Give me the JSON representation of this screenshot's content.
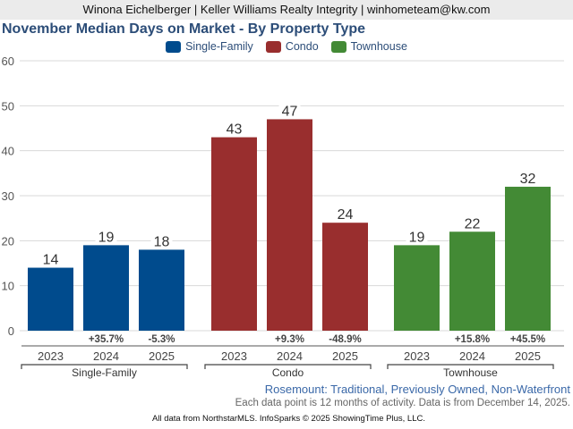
{
  "header": {
    "agent_line": "Winona Eichelberger | Keller Williams Realty Integrity | winhometeam@kw.com"
  },
  "chart_data": {
    "type": "bar",
    "title": "November Median Days on Market - By Property Type",
    "xlabel": "",
    "ylabel": "",
    "ylim": [
      0,
      60
    ],
    "yticks": [
      0,
      10,
      20,
      30,
      40,
      50,
      60
    ],
    "grid": true,
    "legend_position": "top-center",
    "groups": [
      {
        "name": "Single-Family",
        "color": "#004b8d",
        "categories": [
          "2023",
          "2024",
          "2025"
        ],
        "values": [
          14,
          19,
          18
        ],
        "changes": [
          "",
          "+35.7%",
          "-5.3%"
        ]
      },
      {
        "name": "Condo",
        "color": "#992e2e",
        "categories": [
          "2023",
          "2024",
          "2025"
        ],
        "values": [
          43,
          47,
          24
        ],
        "changes": [
          "",
          "+9.3%",
          "-48.9%"
        ]
      },
      {
        "name": "Townhouse",
        "color": "#438a35",
        "categories": [
          "2023",
          "2024",
          "2025"
        ],
        "values": [
          19,
          22,
          32
        ],
        "changes": [
          "",
          "+15.8%",
          "+45.5%"
        ]
      }
    ]
  },
  "legend": [
    {
      "label": "Single-Family",
      "color": "#004b8d"
    },
    {
      "label": "Condo",
      "color": "#992e2e"
    },
    {
      "label": "Townhouse",
      "color": "#438a35"
    }
  ],
  "footer": {
    "subtitle": "Rosemount: Traditional, Previously Owned, Non-Waterfront",
    "note": "Each data point is 12 months of activity. Data is from December 14, 2025.",
    "credit": "All data from NorthstarMLS. InfoSparks © 2025 ShowingTime Plus, LLC."
  }
}
